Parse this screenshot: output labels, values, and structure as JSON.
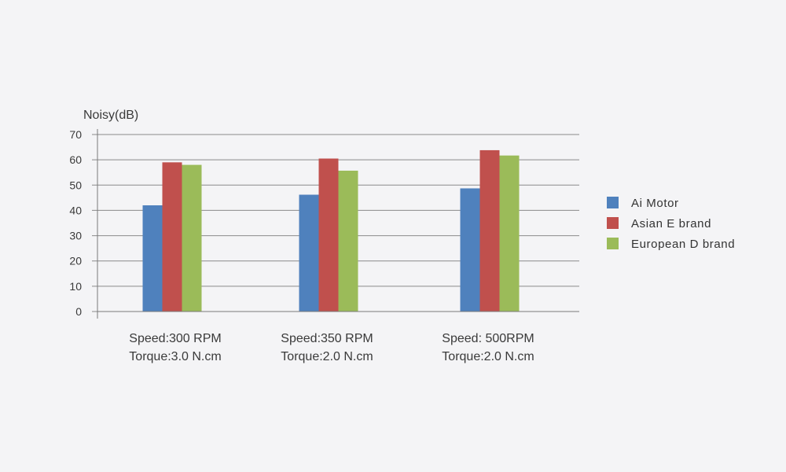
{
  "chart_data": {
    "type": "bar",
    "ylabel": "Noisy(dB)",
    "ylim": [
      0,
      70
    ],
    "yticks": [
      0,
      10,
      20,
      30,
      40,
      50,
      60,
      70
    ],
    "grid": true,
    "legend_position": "right",
    "categories": [
      {
        "line1": "Speed:300 RPM",
        "line2": "Torque:3.0 N.cm"
      },
      {
        "line1": "Speed:350 RPM",
        "line2": "Torque:2.0 N.cm"
      },
      {
        "line1": "Speed: 500RPM",
        "line2": "Torque:2.0 N.cm"
      }
    ],
    "series": [
      {
        "name": "Ai Motor",
        "color": "#4f81bd",
        "values": [
          42,
          46.2,
          48.7
        ]
      },
      {
        "name": "Asian E brand",
        "color": "#c0504d",
        "values": [
          59,
          60.5,
          63.8
        ]
      },
      {
        "name": "European D brand",
        "color": "#9bbb59",
        "values": [
          58,
          55.7,
          61.7
        ]
      }
    ]
  }
}
